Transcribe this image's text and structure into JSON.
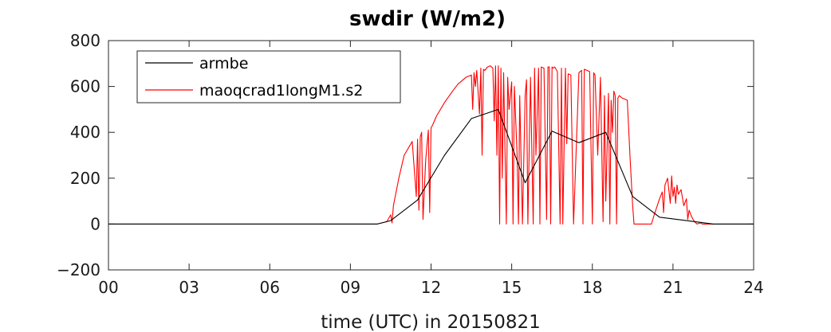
{
  "chart_data": {
    "type": "line",
    "title": "swdir  (W/m2)",
    "xlabel": "time (UTC) in 20150821",
    "ylabel": "",
    "xlim": [
      0,
      24
    ],
    "ylim": [
      -200,
      800
    ],
    "x_ticks": [
      0,
      3,
      6,
      9,
      12,
      15,
      18,
      21,
      24
    ],
    "x_tick_labels": [
      "00",
      "03",
      "06",
      "09",
      "12",
      "15",
      "18",
      "21",
      "24"
    ],
    "y_ticks": [
      -200,
      0,
      200,
      400,
      600,
      800
    ],
    "y_tick_labels": [
      "−200",
      "0",
      "200",
      "400",
      "600",
      "800"
    ],
    "legend_position": "top-left",
    "grid": false,
    "series": [
      {
        "name": "armbe",
        "color": "#000000",
        "x": [
          0,
          1,
          2,
          3,
          4,
          5,
          6,
          7,
          8,
          9,
          10,
          10.5,
          11.5,
          12.5,
          13.5,
          14.5,
          15.5,
          16.5,
          17.5,
          18.5,
          19.5,
          20.5,
          21.5,
          22.5,
          23.5,
          24
        ],
        "values": [
          0,
          0,
          0,
          0,
          0,
          0,
          0,
          0,
          0,
          0,
          0,
          15,
          105,
          300,
          460,
          500,
          180,
          405,
          355,
          400,
          120,
          30,
          15,
          0,
          0,
          0
        ]
      },
      {
        "name": "maoqcrad1longM1.s2",
        "color": "#ff0000",
        "x": [
          0,
          5,
          10,
          10.35,
          10.5,
          10.55,
          10.6,
          10.8,
          11.0,
          11.3,
          11.45,
          11.5,
          11.55,
          11.6,
          11.65,
          11.7,
          11.8,
          11.9,
          11.95,
          12.0,
          12.05,
          12.2,
          12.5,
          12.8,
          13.0,
          13.3,
          13.5,
          13.55,
          13.6,
          13.65,
          13.7,
          13.8,
          13.85,
          13.9,
          13.95,
          14.0,
          14.1,
          14.2,
          14.3,
          14.35,
          14.4,
          14.45,
          14.5,
          14.55,
          14.6,
          14.65,
          14.7,
          14.8,
          14.85,
          14.9,
          15.0,
          15.05,
          15.1,
          15.2,
          15.25,
          15.3,
          15.4,
          15.5,
          15.55,
          15.6,
          15.7,
          15.8,
          15.85,
          15.9,
          16.0,
          16.05,
          16.1,
          16.2,
          16.3,
          16.35,
          16.4,
          16.45,
          16.5,
          16.55,
          16.6,
          16.7,
          16.8,
          16.85,
          16.9,
          17.0,
          17.05,
          17.1,
          17.2,
          17.3,
          17.5,
          17.6,
          17.65,
          17.7,
          17.8,
          17.9,
          18.0,
          18.05,
          18.1,
          18.2,
          18.3,
          18.4,
          18.45,
          18.5,
          18.6,
          18.65,
          18.7,
          18.75,
          18.8,
          18.85,
          18.9,
          18.95,
          19.0,
          19.1,
          19.2,
          19.3,
          19.4,
          19.5,
          19.55,
          20.2,
          20.3,
          20.5,
          20.6,
          20.65,
          20.7,
          20.8,
          20.9,
          20.95,
          21.0,
          21.05,
          21.1,
          21.15,
          21.2,
          21.3,
          21.4,
          21.5,
          21.55,
          21.6,
          21.7,
          21.8,
          21.9,
          22.0,
          22.1,
          22.2,
          22.4,
          23.0,
          24.0
        ],
        "values": [
          0,
          0,
          0,
          10,
          40,
          5,
          80,
          200,
          300,
          360,
          120,
          370,
          60,
          380,
          400,
          20,
          280,
          410,
          50,
          420,
          430,
          470,
          530,
          580,
          610,
          640,
          650,
          500,
          660,
          600,
          670,
          480,
          680,
          300,
          675,
          670,
          685,
          690,
          680,
          450,
          690,
          300,
          690,
          0,
          680,
          200,
          660,
          0,
          640,
          500,
          620,
          0,
          600,
          300,
          0,
          560,
          0,
          560,
          630,
          0,
          640,
          0,
          680,
          300,
          680,
          0,
          685,
          680,
          20,
          685,
          685,
          0,
          685,
          680,
          685,
          665,
          0,
          680,
          0,
          680,
          350,
          655,
          650,
          0,
          660,
          670,
          0,
          675,
          670,
          665,
          0,
          660,
          650,
          300,
          640,
          10,
          560,
          100,
          570,
          0,
          540,
          400,
          580,
          560,
          0,
          550,
          560,
          550,
          545,
          540,
          300,
          80,
          0,
          0,
          40,
          110,
          140,
          50,
          170,
          200,
          90,
          210,
          120,
          160,
          90,
          170,
          130,
          150,
          80,
          110,
          20,
          60,
          30,
          10,
          0,
          5,
          0,
          0,
          0,
          0,
          0
        ]
      }
    ]
  }
}
